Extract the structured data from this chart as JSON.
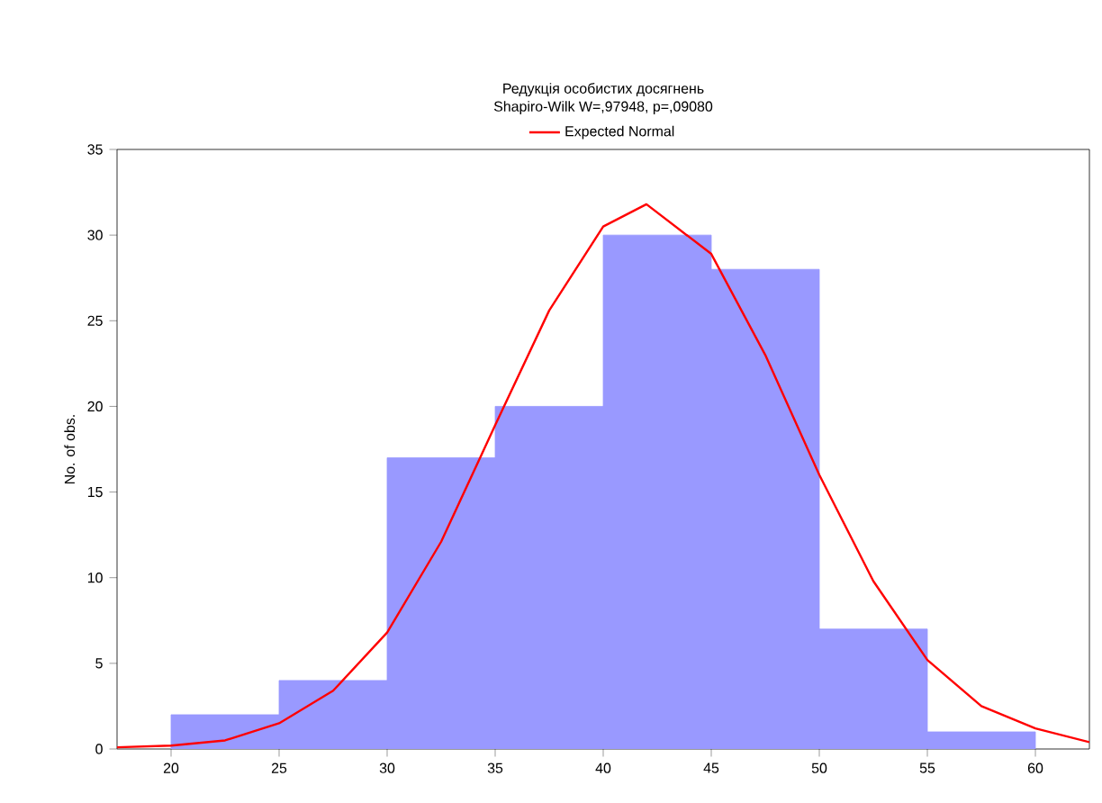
{
  "chart_data": {
    "type": "histogram",
    "title": "Редукція особистих досягнень",
    "subtitle": "Shapiro-Wilk W=,97948, p=,09080",
    "ylabel": "No. of obs.",
    "bins": [
      20,
      25,
      30,
      35,
      40,
      45,
      50,
      55,
      60
    ],
    "values": [
      2,
      4,
      17,
      20,
      30,
      28,
      7,
      1
    ],
    "color": "#9999ff",
    "series": [
      {
        "type": "line",
        "name": "Expected Normal",
        "color": "#ff0000",
        "x": [
          17.5,
          20,
          22.5,
          25,
          27.5,
          30,
          32.5,
          35,
          37.5,
          40,
          42,
          45,
          47.5,
          50,
          52.5,
          55,
          57.5,
          60,
          62.5
        ],
        "values": [
          0.1,
          0.2,
          0.5,
          1.5,
          3.4,
          6.8,
          12.1,
          18.9,
          25.6,
          30.5,
          31.8,
          28.9,
          23.0,
          16.0,
          9.8,
          5.2,
          2.5,
          1.2,
          0.4
        ]
      }
    ],
    "xlim": [
      17.5,
      62.5
    ],
    "xticks": [
      20,
      25,
      30,
      35,
      40,
      45,
      50,
      55,
      60
    ],
    "ylim": [
      0,
      35
    ],
    "yticks": [
      0,
      5,
      10,
      15,
      20,
      25,
      30,
      35
    ],
    "legend": "top"
  }
}
